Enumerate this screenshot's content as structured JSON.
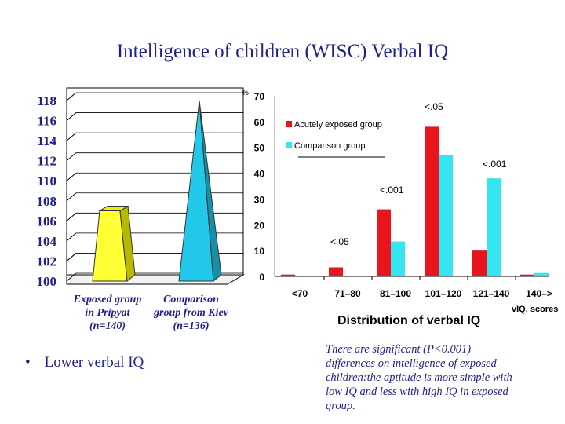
{
  "page": {
    "title": "Intelligence of children (WISC)  Verbal IQ",
    "bullet": "Lower  verbal  IQ",
    "note": "There are significant (P<0.001) differences on intelligence of exposed children:the aptitude is more simple with low IQ and less with high IQ in exposed  group."
  },
  "chart_data": [
    {
      "type": "bar",
      "style": "3d-pyramid",
      "title": "",
      "ylim": [
        100,
        118
      ],
      "yticks": [
        "118",
        "116",
        "114",
        "112",
        "110",
        "108",
        "106",
        "104",
        "102",
        "100"
      ],
      "categories": [
        "Exposed group in Pripyat (n=140)",
        "Comparison group from Kiev (n=136)"
      ],
      "labels": [
        {
          "l1": "Exposed group",
          "l2": "in Pripyat",
          "l3": "(n=140)"
        },
        {
          "l1": "Comparison",
          "l2": "group from Kiev",
          "l3": "(n=136)"
        }
      ],
      "values": [
        107,
        118
      ],
      "colors": [
        "#ffff33",
        "#22c8e8"
      ]
    },
    {
      "type": "bar",
      "title": "Distribution of verbal IQ",
      "xlabel": "vIQ, scores",
      "ylabel": "%",
      "ylim": [
        0,
        70
      ],
      "yticks": [
        "70",
        "60",
        "50",
        "40",
        "30",
        "20",
        "10",
        "0"
      ],
      "categories": [
        "<70",
        "71–80",
        "81–100",
        "101–120",
        "121–140",
        "140–>"
      ],
      "series": [
        {
          "name": "Acutely exposed group",
          "color": "#e8141e",
          "values": [
            0.7,
            3.5,
            26,
            58,
            10,
            0.7
          ]
        },
        {
          "name": "Comparison group",
          "color": "#33e6f0",
          "values": [
            0,
            0,
            13.5,
            47,
            38,
            1.3
          ]
        }
      ],
      "annotations": [
        "<.05",
        "<.001",
        "<.001",
        "<.05"
      ]
    }
  ]
}
